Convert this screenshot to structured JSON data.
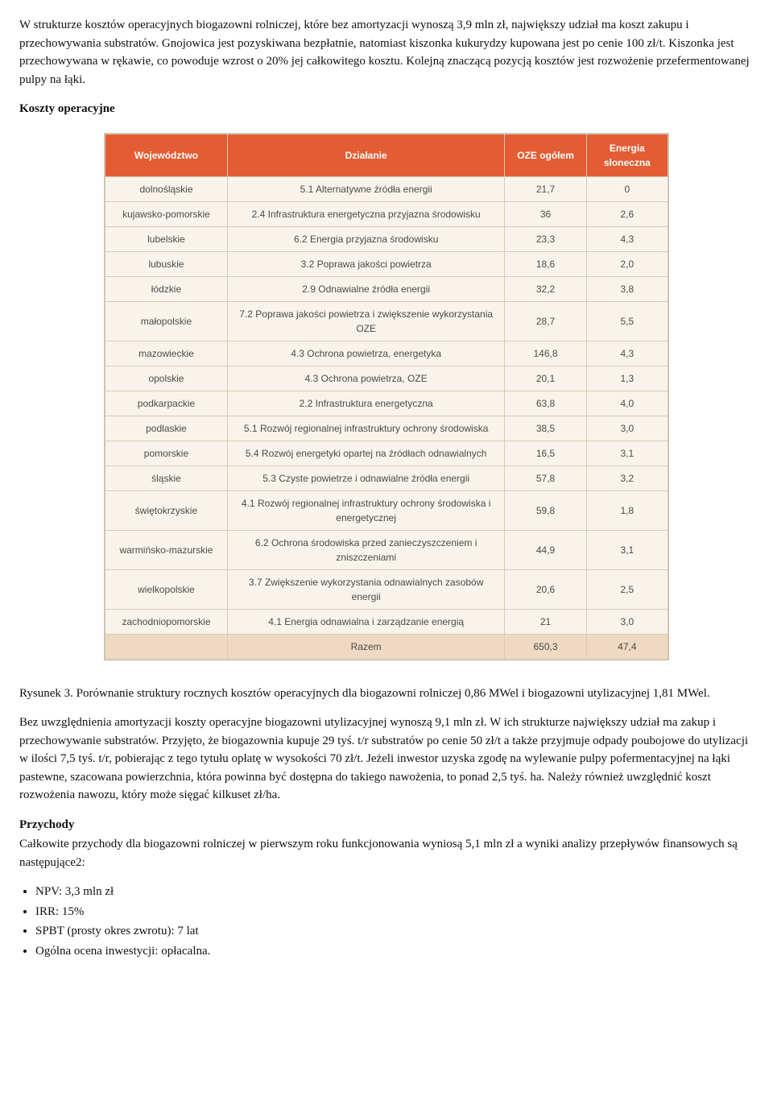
{
  "para1": "W strukturze kosztów operacyjnych biogazowni rolniczej, które bez amortyzacji wynoszą 3,9 mln zł, największy udział ma koszt zakupu i przechowywania substratów. Gnojowica jest pozyskiwana bezpłatnie, natomiast kiszonka kukurydzy kupowana jest po cenie 100 zł/t. Kiszonka jest przechowywana w rękawie, co powoduje wzrost o 20% jej całkowitego kosztu. Kolejną znaczącą pozycją kosztów jest rozwożenie przefermentowanej pulpy na łąki.",
  "heading_costs": "Koszty operacyjne",
  "table": {
    "headers": [
      "Województwo",
      "Działanie",
      "OZE ogółem",
      "Energia słoneczna"
    ],
    "rows": [
      [
        "dolnośląskie",
        "5.1 Alternatywne źródła energii",
        "21,7",
        "0"
      ],
      [
        "kujawsko-pomorskie",
        "2.4 Infrastruktura energetyczna przyjazna środowisku",
        "36",
        "2,6"
      ],
      [
        "lubelskie",
        "6.2 Energia przyjazna środowisku",
        "23,3",
        "4,3"
      ],
      [
        "lubuskie",
        "3.2 Poprawa jakości powietrza",
        "18,6",
        "2,0"
      ],
      [
        "łódzkie",
        "2.9 Odnawialne źródła energii",
        "32,2",
        "3,8"
      ],
      [
        "małopolskie",
        "7.2 Poprawa jakości powietrza i zwiększenie wykorzystania OZE",
        "28,7",
        "5,5"
      ],
      [
        "mazowieckie",
        "4.3 Ochrona powietrza, energetyka",
        "146,8",
        "4,3"
      ],
      [
        "opolskie",
        "4.3 Ochrona powietrza, OZE",
        "20,1",
        "1,3"
      ],
      [
        "podkarpackie",
        "2.2 Infrastruktura energetyczna",
        "63,8",
        "4,0"
      ],
      [
        "podlaskie",
        "5.1 Rozwój regionalnej infrastruktury ochrony środowiska",
        "38,5",
        "3,0"
      ],
      [
        "pomorskie",
        "5.4 Rozwój energetyki opartej na źródłach odnawialnych",
        "16,5",
        "3,1"
      ],
      [
        "śląskie",
        "5.3 Czyste powietrze i odnawialne źródła energii",
        "57,8",
        "3,2"
      ],
      [
        "świętokrzyskie",
        "4.1 Rozwój regionalnej infrastruktury ochrony środowiska i energetycznej",
        "59,8",
        "1,8"
      ],
      [
        "warmińsko-mazurskie",
        "6.2 Ochrona środowiska przed zanieczyszczeniem i zniszczeniami",
        "44,9",
        "3,1"
      ],
      [
        "wielkopolskie",
        "3.7 Zwiększenie wykorzystania odnawialnych zasobów energii",
        "20,6",
        "2,5"
      ],
      [
        "zachodniopomorskie",
        "4.1 Energia odnawialna i zarządzanie energią",
        "21",
        "3,0"
      ]
    ],
    "total": [
      "",
      "Razem",
      "650,3",
      "47,4"
    ],
    "col_widths": [
      "150px",
      "340px",
      "100px",
      "100px"
    ],
    "header_bg": "#e35c33",
    "header_fg": "#ffffff",
    "cell_bg": "#f8f4ec",
    "border_color": "#d8cbb4",
    "total_bg": "#efd9c2",
    "font_size_header": 12,
    "font_size_body": 12
  },
  "caption": "Rysunek 3. Porównanie struktury rocznych kosztów operacyjnych dla biogazowni rolniczej 0,86 MWel i biogazowni utylizacyjnej 1,81 MWel.",
  "para2": "Bez uwzględnienia amortyzacji koszty operacyjne biogazowni utylizacyjnej wynoszą 9,1 mln zł. W ich strukturze największy udział ma zakup i przechowywanie substratów. Przyjęto, że biogazownia kupuje 29 tyś. t/r substratów po cenie 50 zł/t a także przyjmuje odpady poubojowe do utylizacji w ilości 7,5 tyś. t/r, pobierając z tego tytułu opłatę w wysokości 70 zł/t. Jeżeli inwestor uzyska zgodę na wylewanie pulpy pofermentacyjnej na łąki pastewne, szacowana powierzchnia, która powinna być dostępna do takiego nawożenia, to ponad 2,5 tyś. ha. Należy również uwzględnić koszt rozwożenia nawozu, który może sięgać kilkuset zł/ha.",
  "heading_revenue": "Przychody",
  "para3": "Całkowite przychody dla biogazowni rolniczej w pierwszym roku funkcjonowania wyniosą 5,1 mln zł a wyniki analizy przepływów finansowych są następujące2:",
  "bullets": [
    "NPV: 3,3 mln zł",
    "IRR: 15%",
    "SPBT (prosty okres zwrotu): 7 lat",
    "Ogólna ocena inwestycji: opłacalna."
  ]
}
